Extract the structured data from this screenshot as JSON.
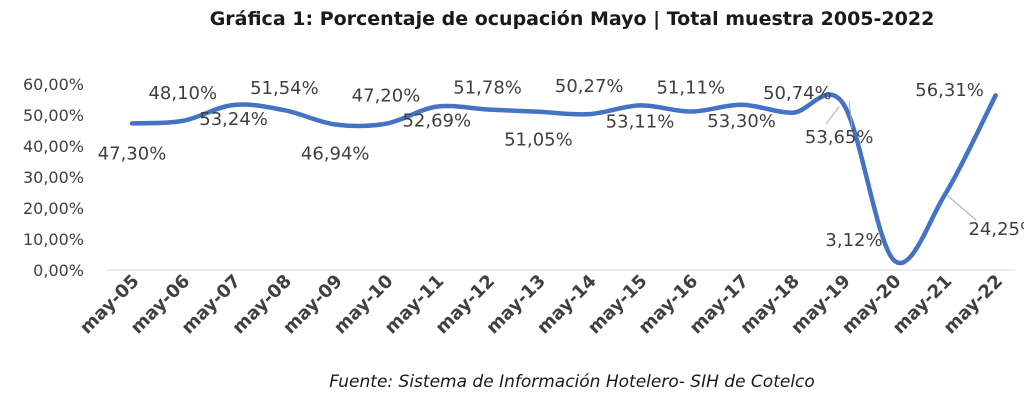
{
  "chart_data": {
    "type": "line",
    "title": "Gráfica 1: Porcentaje de ocupación Mayo | Total muestra 2005-2022",
    "source": "Fuente: Sistema de Información Hotelero- SIH de Cotelco",
    "xlabel": "",
    "ylabel": "",
    "ylim": [
      0,
      60
    ],
    "y_ticks": [
      "0,00%",
      "10,00%",
      "20,00%",
      "30,00%",
      "40,00%",
      "50,00%",
      "60,00%"
    ],
    "categories": [
      "may-05",
      "may-06",
      "may-07",
      "may-08",
      "may-09",
      "may-10",
      "may-11",
      "may-12",
      "may-13",
      "may-14",
      "may-15",
      "may-16",
      "may-17",
      "may-18",
      "may-19",
      "may-20",
      "may-21",
      "may-22"
    ],
    "values": [
      47.3,
      48.1,
      53.24,
      51.54,
      46.94,
      47.2,
      52.69,
      51.78,
      51.05,
      50.27,
      53.11,
      51.11,
      53.3,
      50.74,
      53.65,
      3.12,
      24.25,
      56.31
    ],
    "data_labels": [
      "47,30%",
      "48,10%",
      "53,24%",
      "51,54%",
      "46,94%",
      "47,20%",
      "52,69%",
      "51,78%",
      "51,05%",
      "50,27%",
      "53,11%",
      "51,11%",
      "53,30%",
      "50,74%",
      "53,65%",
      "3,12%",
      "24,25%",
      "56,31%"
    ],
    "line_color": "#4472C4",
    "grid": false,
    "legend": "none"
  }
}
